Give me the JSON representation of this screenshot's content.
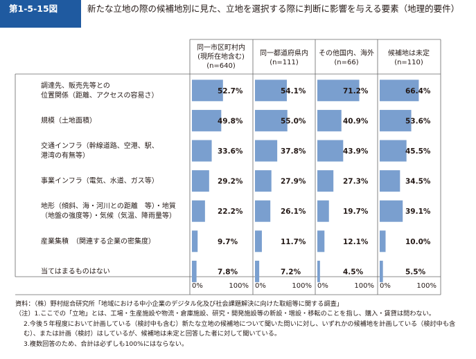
{
  "figure": {
    "number": "第1-5-15図",
    "title": "新たな立地の際の候補地別に見た、立地を選択する際に判断に影響を与える要素（地理的要件）"
  },
  "chart_data": {
    "type": "bar",
    "orientation": "horizontal",
    "layout": "small-multiples",
    "categories": [
      [
        "調達先、販売先等との",
        "位置関係（距離、アクセスの容易さ）"
      ],
      [
        "規模（土地面積）"
      ],
      [
        "交通インフラ（幹線道路、空港、駅、",
        "港湾の有無等）"
      ],
      [
        "事業インフラ（電気、水道、ガス等）"
      ],
      [
        "地形（傾斜、海・河川との距離　等）・地質",
        "（地盤の強度等）・気候（気温、降雨量等）"
      ],
      [
        "産業集積　（関連する企業の密集度）"
      ],
      [
        "当てはまるものはない"
      ]
    ],
    "series": [
      {
        "name": [
          "同一市区町村内",
          "(現所在地含む)",
          "(n=640)"
        ],
        "values": [
          52.7,
          49.8,
          33.6,
          29.2,
          22.2,
          9.7,
          7.8
        ]
      },
      {
        "name": [
          "同一都道府県内",
          "(n=111)"
        ],
        "values": [
          54.1,
          55.0,
          37.8,
          27.9,
          26.1,
          11.7,
          7.2
        ]
      },
      {
        "name": [
          "その他国内、海外",
          "(n=66)"
        ],
        "values": [
          71.2,
          40.9,
          43.9,
          27.3,
          19.7,
          12.1,
          4.5
        ]
      },
      {
        "name": [
          "候補地は未定",
          "(n=110)"
        ],
        "values": [
          66.4,
          53.6,
          45.5,
          34.5,
          39.1,
          10.0,
          5.5
        ]
      }
    ],
    "value_labels": [
      [
        "52.7%",
        "49.8%",
        "33.6%",
        "29.2%",
        "22.2%",
        "9.7%",
        "7.8%"
      ],
      [
        "54.1%",
        "55.0%",
        "37.8%",
        "27.9%",
        "26.1%",
        "11.7%",
        "7.2%"
      ],
      [
        "71.2%",
        "40.9%",
        "43.9%",
        "27.3%",
        "19.7%",
        "12.1%",
        "4.5%"
      ],
      [
        "66.4%",
        "53.6%",
        "45.5%",
        "34.5%",
        "39.1%",
        "10.0%",
        "5.5%"
      ]
    ],
    "xlim": [
      0,
      100
    ],
    "tick_labels": [
      "0%",
      "100%"
    ],
    "bar_color": "#7a9fcf",
    "grid": false,
    "legend": "none"
  },
  "notes": {
    "source": "資料：（株）野村総合研究所「地域における中小企業のデジタル化及び社会課題解決に向けた取組等に関する調査」",
    "note1": "（注）1.ここでの「立地」とは、工場・生産施設や物流・倉庫施設、研究・開発施設等の新設・増設・移転のことを指し、購入・賃貸は問わない。",
    "note2": "2.今後５年程度において計画している（検討中も含む）新たな立地の候補地について聞いた問いに対し、いずれかの候補地を計画している（検討中も含む）、または計画（検討）はしているが、候補地は未定と回答した者に対して聞いている。",
    "note3": "3.複数回答のため、合計は必ずしも100%にはならない。"
  }
}
